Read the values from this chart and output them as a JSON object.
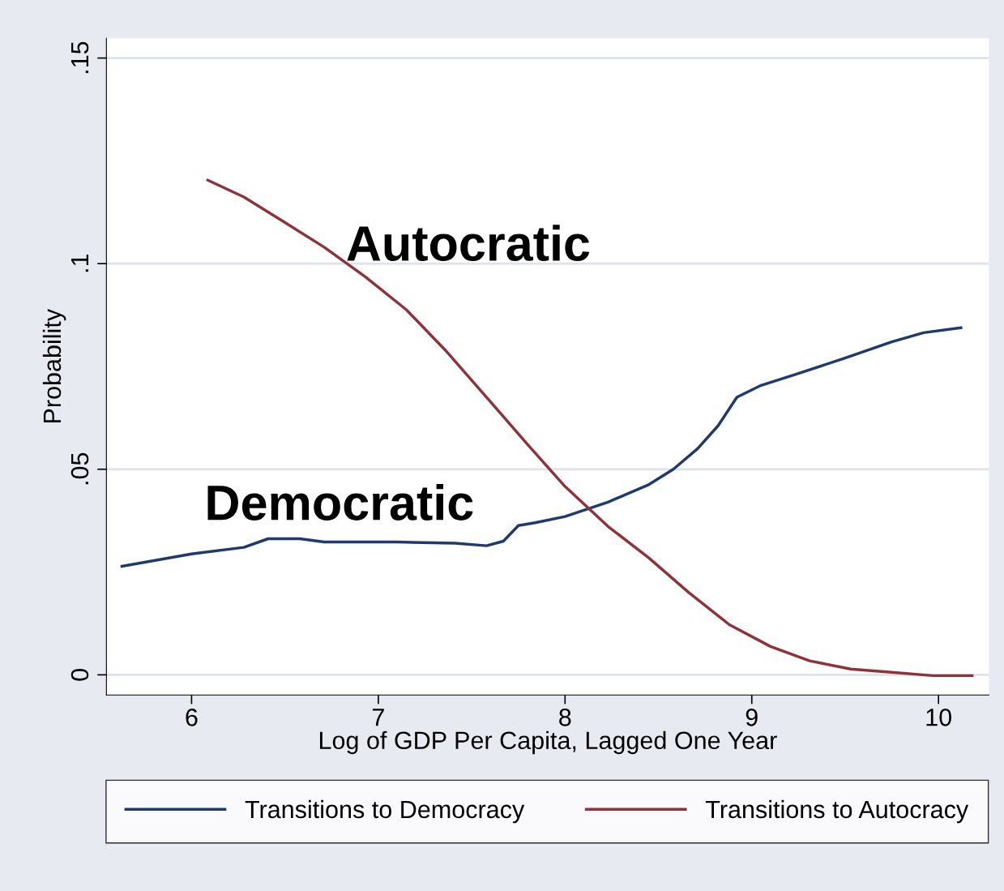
{
  "chart_data": {
    "type": "line",
    "xlabel": "Log of GDP Per Capita, Lagged One Year",
    "ylabel": "Probability",
    "xlim": [
      5.544,
      10.27
    ],
    "ylim": [
      -0.0049,
      0.1548
    ],
    "xticks": [
      6,
      7,
      8,
      9,
      10
    ],
    "yticks": [
      {
        "value": 0,
        "label": "0"
      },
      {
        "value": 0.05,
        "label": ".05"
      },
      {
        "value": 0.1,
        "label": ".1"
      },
      {
        "value": 0.15,
        "label": ".15"
      }
    ],
    "grid": "y",
    "legend": "bottom",
    "series": [
      {
        "name": "Transitions to Democracy",
        "color": "#1f3a6e",
        "x": [
          5.627,
          6.0,
          6.28,
          6.41,
          6.58,
          6.71,
          7.1,
          7.41,
          7.58,
          7.67,
          7.75,
          7.84,
          8.0,
          8.23,
          8.45,
          8.58,
          8.71,
          8.82,
          8.92,
          9.05,
          9.23,
          9.49,
          9.75,
          9.92,
          10.12
        ],
        "values": [
          0.0264,
          0.0294,
          0.031,
          0.0331,
          0.0331,
          0.0323,
          0.0323,
          0.032,
          0.0314,
          0.0325,
          0.0363,
          0.037,
          0.0385,
          0.042,
          0.0463,
          0.05,
          0.055,
          0.0606,
          0.0675,
          0.0704,
          0.073,
          0.0769,
          0.081,
          0.0832,
          0.0844
        ]
      },
      {
        "name": "Transitions to Autocracy",
        "color": "#8f333a",
        "x": [
          6.087,
          6.28,
          6.49,
          6.71,
          6.93,
          7.15,
          7.36,
          7.58,
          7.8,
          8.0,
          8.23,
          8.45,
          8.66,
          8.88,
          9.1,
          9.31,
          9.53,
          9.75,
          9.97,
          10.18
        ],
        "values": [
          0.1203,
          0.1162,
          0.1103,
          0.104,
          0.0968,
          0.0888,
          0.0789,
          0.0675,
          0.056,
          0.0458,
          0.0361,
          0.0284,
          0.0201,
          0.0122,
          0.0069,
          0.0034,
          0.0014,
          0.0006,
          -0.0002,
          -0.0002
        ]
      }
    ],
    "annotations": [
      "Autocratic",
      "Democratic"
    ]
  }
}
